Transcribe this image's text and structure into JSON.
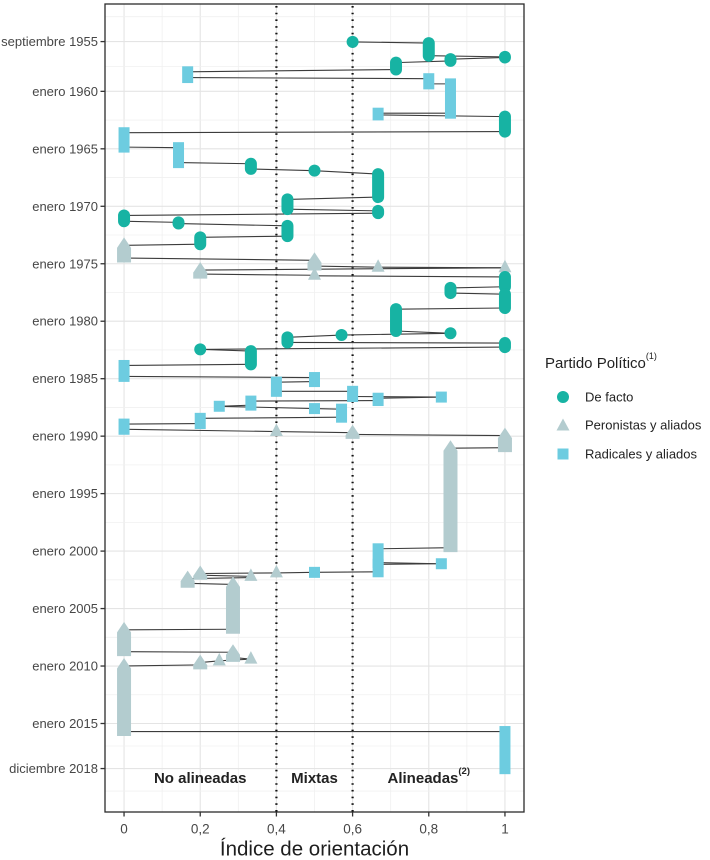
{
  "chart_data": {
    "type": "line",
    "title": "",
    "xlabel": "Índice de orientación",
    "ylabel": "",
    "xlim": [
      -0.05,
      1.05
    ],
    "ylim": [
      1952.4,
      2022.7
    ],
    "y_reversed": true,
    "grid": true,
    "xticks": [
      {
        "value": 0,
        "label": "0"
      },
      {
        "value": 0.2,
        "label": "0,2"
      },
      {
        "value": 0.4,
        "label": "0,4"
      },
      {
        "value": 0.6,
        "label": "0,6"
      },
      {
        "value": 0.8,
        "label": "0,8"
      },
      {
        "value": 1,
        "label": "1"
      }
    ],
    "yticks": [
      {
        "value": 1955.67,
        "label": "septiembre 1955"
      },
      {
        "value": 1960,
        "label": "enero 1960"
      },
      {
        "value": 1965,
        "label": "enero 1965"
      },
      {
        "value": 1970,
        "label": "enero 1970"
      },
      {
        "value": 1975,
        "label": "enero 1975"
      },
      {
        "value": 1980,
        "label": "enero 1980"
      },
      {
        "value": 1985,
        "label": "enero 1985"
      },
      {
        "value": 1990,
        "label": "enero 1990"
      },
      {
        "value": 1995,
        "label": "enero 1995"
      },
      {
        "value": 2000,
        "label": "enero 2000"
      },
      {
        "value": 2005,
        "label": "enero 2005"
      },
      {
        "value": 2010,
        "label": "enero 2010"
      },
      {
        "value": 2015,
        "label": "enero 2015"
      },
      {
        "value": 2018.92,
        "label": "diciembre 2018"
      }
    ],
    "reference_lines": [
      {
        "axis": "x",
        "value": 0.4,
        "style": "dotted"
      },
      {
        "axis": "x",
        "value": 0.6,
        "style": "dotted"
      }
    ],
    "regions": [
      {
        "label": "No alineadas",
        "sup": "",
        "range": [
          0,
          0.4
        ]
      },
      {
        "label": "Mixtas",
        "sup": "",
        "range": [
          0.4,
          0.6
        ]
      },
      {
        "label": "Alineadas",
        "sup": "(2)",
        "range": [
          0.6,
          1
        ]
      }
    ],
    "legend": {
      "title": "Partido Político",
      "title_sup": "(1)",
      "position": "right"
    },
    "series": [
      {
        "key": "DF",
        "name": "De facto",
        "color": "#17b3a3",
        "shape": "circle"
      },
      {
        "key": "P",
        "name": "Peronistas y aliados",
        "color": "#b3cccf",
        "shape": "triangle"
      },
      {
        "key": "R",
        "name": "Radicales y aliados",
        "color": "#6dcce0",
        "shape": "square"
      }
    ],
    "points": [
      {
        "party": "DF",
        "index": 0.6,
        "start": 1955.7,
        "end": 1955.7
      },
      {
        "party": "DF",
        "index": 0.8,
        "start": 1955.8,
        "end": 1956.9
      },
      {
        "party": "DF",
        "index": 1.0,
        "start": 1957.0,
        "end": 1957.05
      },
      {
        "party": "DF",
        "index": 0.857,
        "start": 1957.2,
        "end": 1957.35
      },
      {
        "party": "DF",
        "index": 0.714,
        "start": 1957.5,
        "end": 1958.1
      },
      {
        "party": "R",
        "index": 0.167,
        "start": 1958.3,
        "end": 1958.8
      },
      {
        "party": "R",
        "index": 0.8,
        "start": 1958.9,
        "end": 1959.35
      },
      {
        "party": "R",
        "index": 0.857,
        "start": 1959.35,
        "end": 1961.9
      },
      {
        "party": "R",
        "index": 0.667,
        "start": 1961.9,
        "end": 1962.05
      },
      {
        "party": "DF",
        "index": 1.0,
        "start": 1962.2,
        "end": 1963.5
      },
      {
        "party": "R",
        "index": 0.0,
        "start": 1963.6,
        "end": 1964.85
      },
      {
        "party": "R",
        "index": 0.143,
        "start": 1964.9,
        "end": 1966.2
      },
      {
        "party": "DF",
        "index": 0.333,
        "start": 1966.3,
        "end": 1966.75
      },
      {
        "party": "DF",
        "index": 0.5,
        "start": 1966.9,
        "end": 1966.9
      },
      {
        "party": "DF",
        "index": 0.667,
        "start": 1967.2,
        "end": 1969.2
      },
      {
        "party": "DF",
        "index": 0.429,
        "start": 1969.4,
        "end": 1970.25
      },
      {
        "party": "DF",
        "index": 0.667,
        "start": 1970.4,
        "end": 1970.6
      },
      {
        "party": "DF",
        "index": 0.0,
        "start": 1970.8,
        "end": 1971.3
      },
      {
        "party": "DF",
        "index": 0.143,
        "start": 1971.4,
        "end": 1971.5
      },
      {
        "party": "DF",
        "index": 0.429,
        "start": 1971.7,
        "end": 1972.6
      },
      {
        "party": "DF",
        "index": 0.2,
        "start": 1972.7,
        "end": 1973.3
      },
      {
        "party": "P",
        "index": 0.0,
        "start": 1973.4,
        "end": 1974.5
      },
      {
        "party": "P",
        "index": 0.5,
        "start": 1974.7,
        "end": 1975.2
      },
      {
        "party": "P",
        "index": 0.667,
        "start": 1975.3,
        "end": 1975.3
      },
      {
        "party": "P",
        "index": 1.0,
        "start": 1975.35,
        "end": 1975.35
      },
      {
        "party": "P",
        "index": 0.2,
        "start": 1975.55,
        "end": 1975.9
      },
      {
        "party": "P",
        "index": 0.5,
        "start": 1976.0,
        "end": 1976.05
      },
      {
        "party": "DF",
        "index": 1.0,
        "start": 1976.15,
        "end": 1977.0
      },
      {
        "party": "DF",
        "index": 0.857,
        "start": 1977.1,
        "end": 1977.55
      },
      {
        "party": "DF",
        "index": 1.0,
        "start": 1977.65,
        "end": 1978.85
      },
      {
        "party": "DF",
        "index": 0.714,
        "start": 1978.95,
        "end": 1980.85
      },
      {
        "party": "DF",
        "index": 0.857,
        "start": 1981.05,
        "end": 1981.05
      },
      {
        "party": "DF",
        "index": 0.571,
        "start": 1981.2,
        "end": 1981.2
      },
      {
        "party": "DF",
        "index": 0.429,
        "start": 1981.4,
        "end": 1981.85
      },
      {
        "party": "DF",
        "index": 1.0,
        "start": 1981.9,
        "end": 1982.25
      },
      {
        "party": "DF",
        "index": 0.2,
        "start": 1982.45,
        "end": 1982.45
      },
      {
        "party": "DF",
        "index": 0.333,
        "start": 1982.6,
        "end": 1983.75
      },
      {
        "party": "R",
        "index": 0.0,
        "start": 1983.85,
        "end": 1984.8
      },
      {
        "party": "R",
        "index": 0.5,
        "start": 1984.9,
        "end": 1985.25
      },
      {
        "party": "R",
        "index": 0.4,
        "start": 1985.3,
        "end": 1986.1
      },
      {
        "party": "R",
        "index": 0.6,
        "start": 1986.1,
        "end": 1986.55
      },
      {
        "party": "R",
        "index": 0.833,
        "start": 1986.6,
        "end": 1986.6
      },
      {
        "party": "R",
        "index": 0.667,
        "start": 1986.7,
        "end": 1986.9
      },
      {
        "party": "R",
        "index": 0.333,
        "start": 1986.95,
        "end": 1987.3
      },
      {
        "party": "R",
        "index": 0.25,
        "start": 1987.4,
        "end": 1987.4
      },
      {
        "party": "R",
        "index": 0.5,
        "start": 1987.6,
        "end": 1987.6
      },
      {
        "party": "R",
        "index": 0.571,
        "start": 1987.65,
        "end": 1988.35
      },
      {
        "party": "R",
        "index": 0.2,
        "start": 1988.45,
        "end": 1988.9
      },
      {
        "party": "R",
        "index": 0.0,
        "start": 1988.95,
        "end": 1989.4
      },
      {
        "party": "P",
        "index": 0.4,
        "start": 1989.6,
        "end": 1989.6
      },
      {
        "party": "P",
        "index": 0.6,
        "start": 1989.7,
        "end": 1989.85
      },
      {
        "party": "P",
        "index": 1.0,
        "start": 1989.95,
        "end": 1991.0
      },
      {
        "party": "P",
        "index": 0.857,
        "start": 1991.05,
        "end": 1999.7
      },
      {
        "party": "R",
        "index": 0.667,
        "start": 1999.8,
        "end": 2001.0
      },
      {
        "party": "R",
        "index": 0.833,
        "start": 2001.1,
        "end": 2001.1
      },
      {
        "party": "R",
        "index": 0.667,
        "start": 2001.15,
        "end": 2001.8
      },
      {
        "party": "R",
        "index": 0.5,
        "start": 2001.85,
        "end": 2001.85
      },
      {
        "party": "P",
        "index": 0.4,
        "start": 2001.9,
        "end": 2001.9
      },
      {
        "party": "P",
        "index": 0.2,
        "start": 2001.95,
        "end": 2002.1
      },
      {
        "party": "P",
        "index": 0.333,
        "start": 2002.2,
        "end": 2002.3
      },
      {
        "party": "P",
        "index": 0.167,
        "start": 2002.4,
        "end": 2002.8
      },
      {
        "party": "P",
        "index": 0.286,
        "start": 2002.9,
        "end": 2006.8
      },
      {
        "party": "P",
        "index": 0.0,
        "start": 2006.85,
        "end": 2008.75
      },
      {
        "party": "P",
        "index": 0.286,
        "start": 2008.8,
        "end": 2009.25
      },
      {
        "party": "P",
        "index": 0.333,
        "start": 2009.4,
        "end": 2009.4
      },
      {
        "party": "P",
        "index": 0.25,
        "start": 2009.55,
        "end": 2009.55
      },
      {
        "party": "P",
        "index": 0.2,
        "start": 2009.7,
        "end": 2009.9
      },
      {
        "party": "P",
        "index": 0.0,
        "start": 2010.0,
        "end": 2015.7
      },
      {
        "party": "R",
        "index": 1.0,
        "start": 2015.7,
        "end": 2018.93
      }
    ]
  }
}
